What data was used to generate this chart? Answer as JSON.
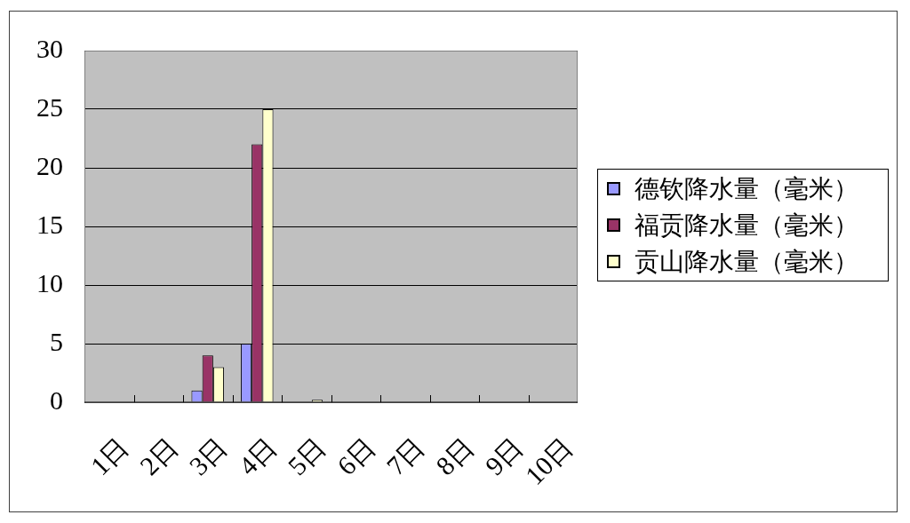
{
  "chart_data": {
    "type": "bar",
    "categories": [
      "1日",
      "2日",
      "3日",
      "4日",
      "5日",
      "6日",
      "7日",
      "8日",
      "9日",
      "10日"
    ],
    "series": [
      {
        "name": "德钦降水量（毫米）",
        "color": "#9999ff",
        "values": [
          0,
          0,
          1,
          5,
          0,
          0,
          0,
          0,
          0,
          0
        ]
      },
      {
        "name": "福贡降水量（毫米）",
        "color": "#993366",
        "values": [
          0,
          0,
          4,
          22,
          0,
          0,
          0,
          0,
          0,
          0
        ]
      },
      {
        "name": "贡山降水量（毫米）",
        "color": "#ffffcc",
        "values": [
          0,
          0,
          3,
          25,
          0.2,
          0,
          0,
          0,
          0,
          0
        ]
      }
    ],
    "ylim": [
      0,
      30
    ],
    "yticks": [
      0,
      5,
      10,
      15,
      20,
      25,
      30
    ],
    "grid": "y",
    "legend": "right"
  }
}
